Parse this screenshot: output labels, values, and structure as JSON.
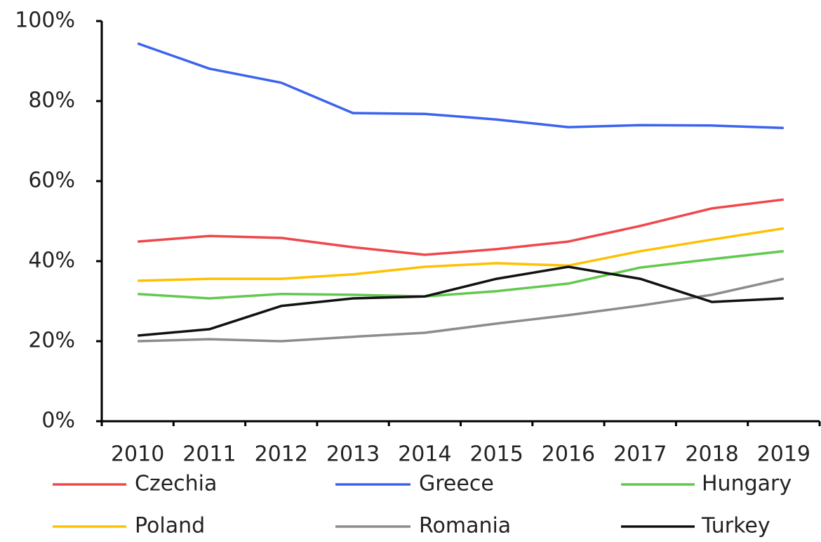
{
  "chart_data": {
    "type": "line",
    "categories": [
      "2010",
      "2011",
      "2012",
      "2013",
      "2014",
      "2015",
      "2016",
      "2017",
      "2018",
      "2019"
    ],
    "series": [
      {
        "name": "Czechia",
        "color": "#f0474b",
        "values": [
          44.9,
          46.3,
          45.8,
          43.5,
          41.6,
          43.0,
          44.9,
          48.8,
          53.2,
          55.4
        ]
      },
      {
        "name": "Greece",
        "color": "#3b63ee",
        "values": [
          94.4,
          88.1,
          84.6,
          77.0,
          76.8,
          75.4,
          73.5,
          74.0,
          73.9,
          73.3
        ]
      },
      {
        "name": "Hungary",
        "color": "#62c94f",
        "values": [
          31.8,
          30.7,
          31.8,
          31.6,
          31.2,
          32.5,
          34.4,
          38.4,
          40.5,
          42.5
        ]
      },
      {
        "name": "Poland",
        "color": "#ffc000",
        "values": [
          35.1,
          35.6,
          35.6,
          36.7,
          38.6,
          39.5,
          38.9,
          42.5,
          45.4,
          48.2
        ]
      },
      {
        "name": "Romania",
        "color": "#8c8c8c",
        "values": [
          20.0,
          20.5,
          20.0,
          21.1,
          22.1,
          24.4,
          26.5,
          28.9,
          31.6,
          35.6
        ]
      },
      {
        "name": "Turkey",
        "color": "#111111",
        "values": [
          21.4,
          23.0,
          28.8,
          30.7,
          31.2,
          35.6,
          38.6,
          35.6,
          29.8,
          30.7
        ]
      }
    ],
    "ylim": [
      0,
      100
    ],
    "yticks": [
      {
        "value": 0,
        "label": "0%"
      },
      {
        "value": 20,
        "label": "20%"
      },
      {
        "value": 40,
        "label": "40%"
      },
      {
        "value": 60,
        "label": "60%"
      },
      {
        "value": 80,
        "label": "80%"
      },
      {
        "value": 100,
        "label": "100%"
      }
    ],
    "grid": false
  }
}
